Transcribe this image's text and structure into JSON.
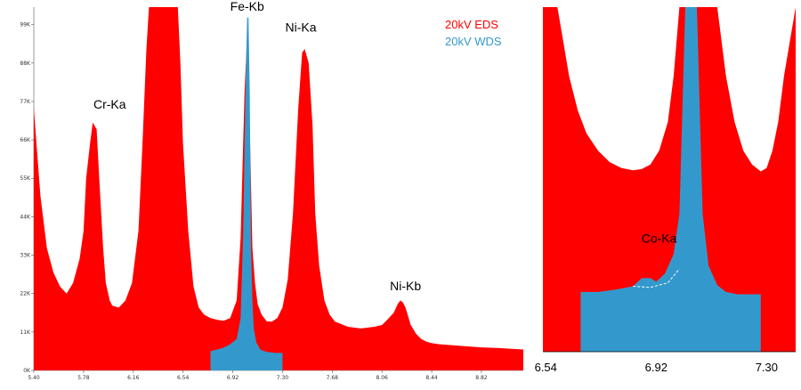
{
  "chart_data": [
    {
      "type": "area",
      "xlim": [
        5.4,
        9.14
      ],
      "ylim": [
        0,
        104000
      ],
      "x_ticks": [
        "5.40",
        "5.78",
        "6.16",
        "6.54",
        "6.92",
        "7.30",
        "7.68",
        "8.06",
        "8.44",
        "8.82"
      ],
      "x_tick_values": [
        5.4,
        5.78,
        6.16,
        6.54,
        6.92,
        7.3,
        7.68,
        8.06,
        8.44,
        8.82
      ],
      "y_ticks": [
        "0K",
        "11K",
        "22K",
        "33K",
        "44K",
        "55K",
        "66K",
        "77K",
        "88K",
        "99K"
      ],
      "y_tick_values": [
        0,
        11000,
        22000,
        33000,
        44000,
        55000,
        66000,
        77000,
        88000,
        99000
      ],
      "legend": {
        "position": "top-right"
      },
      "series": [
        {
          "name": "20kV EDS",
          "color": "#ff0000",
          "x": [
            5.4,
            5.45,
            5.5,
            5.55,
            5.6,
            5.65,
            5.7,
            5.75,
            5.78,
            5.8,
            5.83,
            5.85,
            5.88,
            5.9,
            5.93,
            5.95,
            5.98,
            6.0,
            6.05,
            6.1,
            6.15,
            6.2,
            6.23,
            6.26,
            6.28,
            6.3,
            6.32,
            6.34,
            6.36,
            6.5,
            6.52,
            6.54,
            6.58,
            6.62,
            6.66,
            6.7,
            6.75,
            6.8,
            6.85,
            6.9,
            6.95,
            6.98,
            7.01,
            7.03,
            7.05,
            7.07,
            7.09,
            7.11,
            7.14,
            7.18,
            7.22,
            7.26,
            7.3,
            7.34,
            7.38,
            7.42,
            7.45,
            7.47,
            7.5,
            7.53,
            7.55,
            7.58,
            7.62,
            7.66,
            7.7,
            7.8,
            7.9,
            8.0,
            8.06,
            8.1,
            8.15,
            8.18,
            8.2,
            8.22,
            8.24,
            8.26,
            8.28,
            8.32,
            8.36,
            8.4,
            8.44,
            8.5,
            8.6,
            8.7,
            8.82,
            8.95,
            9.05,
            9.14
          ],
          "y": [
            75000,
            50000,
            35000,
            28000,
            24000,
            22000,
            25000,
            32000,
            40000,
            55000,
            65000,
            71000,
            69000,
            55000,
            35000,
            25000,
            20000,
            18500,
            18000,
            20000,
            25000,
            40000,
            65000,
            92000,
            104000,
            104000,
            104000,
            104000,
            104000,
            104000,
            88000,
            65000,
            40000,
            24000,
            18000,
            16000,
            15000,
            14500,
            14200,
            15000,
            20000,
            38000,
            80000,
            96000,
            70000,
            35000,
            25000,
            19000,
            16000,
            14000,
            14000,
            15000,
            18000,
            26000,
            45000,
            75000,
            91000,
            92000,
            88000,
            70000,
            45000,
            30000,
            20000,
            16000,
            14000,
            12500,
            12000,
            12500,
            13000,
            14500,
            16500,
            19000,
            20000,
            19500,
            18000,
            15500,
            13000,
            10500,
            9000,
            8200,
            7800,
            7500,
            7200,
            6900,
            6600,
            6400,
            6200,
            6000
          ]
        },
        {
          "name": "20kV WDS",
          "color": "#3399cc",
          "x": [
            6.75,
            6.8,
            6.85,
            6.9,
            6.95,
            6.98,
            7.0,
            7.02,
            7.03,
            7.04,
            7.05,
            7.06,
            7.07,
            7.08,
            7.1,
            7.13,
            7.16,
            7.2,
            7.25,
            7.3
          ],
          "y": [
            5500,
            6000,
            6500,
            7500,
            9000,
            15000,
            40000,
            85000,
            101000,
            101000,
            80000,
            35000,
            20000,
            12000,
            8000,
            6000,
            5500,
            5200,
            5000,
            5000
          ]
        }
      ],
      "annotations": [
        {
          "text": "Cr-Ka",
          "x": 5.98,
          "y": 75000
        },
        {
          "text": "Fe-Kb",
          "x": 7.03,
          "y": 103000
        },
        {
          "text": "Ni-Ka",
          "x": 7.44,
          "y": 97000
        },
        {
          "text": "Ni-Kb",
          "x": 8.24,
          "y": 23000
        }
      ]
    },
    {
      "type": "area",
      "note_visible": "zoomed inset",
      "x_ticks": [
        "6.54",
        "6.92",
        "7.30"
      ],
      "x_tick_values": [
        6.54,
        6.92,
        7.3
      ],
      "xlim": [
        6.53,
        7.4
      ],
      "ylim": [
        0,
        30000
      ],
      "series": [
        {
          "name": "20kV EDS",
          "color": "#ff0000",
          "x": [
            6.53,
            6.56,
            6.58,
            6.6,
            6.62,
            6.65,
            6.68,
            6.72,
            6.76,
            6.8,
            6.84,
            6.87,
            6.9,
            6.93,
            6.96,
            6.98,
            7.0,
            7.02,
            7.06,
            7.1,
            7.13,
            7.16,
            7.19,
            7.22,
            7.25,
            7.28,
            7.3,
            7.32,
            7.34,
            7.36,
            7.4
          ],
          "y": [
            30000,
            30000,
            30000,
            27000,
            24000,
            21000,
            19000,
            17500,
            16500,
            16000,
            15800,
            15900,
            16300,
            17500,
            20000,
            24000,
            30000,
            30000,
            30000,
            30000,
            30000,
            24000,
            20000,
            17500,
            16300,
            15700,
            16000,
            17500,
            20000,
            24000,
            30000
          ]
        },
        {
          "name": "20kV WDS",
          "color": "#3399cc",
          "x": [
            6.66,
            6.72,
            6.78,
            6.84,
            6.87,
            6.9,
            6.92,
            6.95,
            6.98,
            7.0,
            7.02,
            7.04,
            7.06,
            7.08,
            7.1,
            7.13,
            7.16,
            7.2,
            7.28
          ],
          "y": [
            5200,
            5200,
            5400,
            5700,
            6400,
            6400,
            6100,
            6800,
            8500,
            12000,
            30000,
            30000,
            30000,
            12000,
            7500,
            5800,
            5200,
            5000,
            5000
          ]
        }
      ],
      "annotations": [
        {
          "text": "Co-Ka",
          "x": 6.93,
          "y": 9500
        }
      ]
    }
  ]
}
